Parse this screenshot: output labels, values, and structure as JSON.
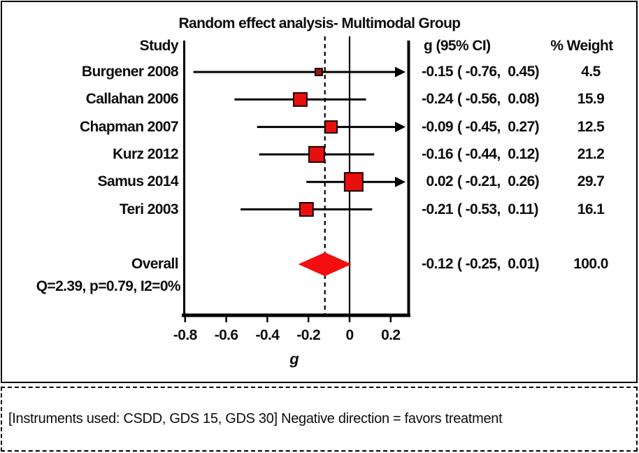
{
  "chart_data": {
    "type": "forest",
    "title": "Random effect analysis- Multimodal Group",
    "columns": {
      "study": "Study",
      "effect": "g (95% CI)",
      "weight": "% Weight"
    },
    "studies": [
      {
        "name": "Burgener 2008",
        "est": -0.15,
        "lo": -0.76,
        "hi": 0.45,
        "weight": 4.5,
        "est_text": "-0.15",
        "ci_text": "( -0.76,  0.45)",
        "weight_text": "4.5",
        "ci_clipped_right": true,
        "marker_color": "#9c1310"
      },
      {
        "name": "Callahan 2006",
        "est": -0.24,
        "lo": -0.56,
        "hi": 0.08,
        "weight": 15.9,
        "est_text": "-0.24",
        "ci_text": "( -0.56,  0.08)",
        "weight_text": "15.9",
        "ci_clipped_right": false
      },
      {
        "name": "Chapman 2007",
        "est": -0.09,
        "lo": -0.45,
        "hi": 0.27,
        "weight": 12.5,
        "est_text": "-0.09",
        "ci_text": "( -0.45,  0.27)",
        "weight_text": "12.5",
        "ci_clipped_right": true
      },
      {
        "name": "Kurz 2012",
        "est": -0.16,
        "lo": -0.44,
        "hi": 0.12,
        "weight": 21.2,
        "est_text": "-0.16",
        "ci_text": "( -0.44,  0.12)",
        "weight_text": "21.2",
        "ci_clipped_right": false
      },
      {
        "name": "Samus 2014",
        "est": 0.02,
        "lo": -0.21,
        "hi": 0.26,
        "weight": 29.7,
        "est_text": "0.02",
        "ci_text": "( -0.21,  0.26)",
        "weight_text": "29.7",
        "ci_clipped_right": true
      },
      {
        "name": "Teri 2003",
        "est": -0.21,
        "lo": -0.53,
        "hi": 0.11,
        "weight": 16.1,
        "est_text": "-0.21",
        "ci_text": "( -0.53,  0.11)",
        "weight_text": "16.1",
        "ci_clipped_right": false
      }
    ],
    "overall": {
      "label": "Overall",
      "est": -0.12,
      "lo": -0.25,
      "hi": 0.01,
      "weight": 100.0,
      "est_text": "-0.12",
      "ci_text": "( -0.25,  0.01)",
      "weight_text": "100.0"
    },
    "heterogeneity": "Q=2.39, p=0.79, I2=0%",
    "x_axis": {
      "label": "g",
      "ticks": [
        -0.8,
        -0.6,
        -0.4,
        -0.2,
        0,
        0.2
      ],
      "tick_labels": [
        "-0.8",
        "-0.6",
        "-0.4",
        "-0.2",
        "0",
        "0.2"
      ],
      "range": [
        -0.805,
        0.29
      ],
      "zero_line": 0,
      "pooled_line": -0.12,
      "grid": false
    },
    "legend": null,
    "colors": {
      "marker_fill": "#e8100c",
      "marker_border": "#1a0000",
      "diamond_fill": "#f30f0f",
      "line": "#000000"
    }
  },
  "footer": {
    "note": "[Instruments used: CSDD, GDS 15, GDS 30] Negative direction = favors treatment"
  }
}
